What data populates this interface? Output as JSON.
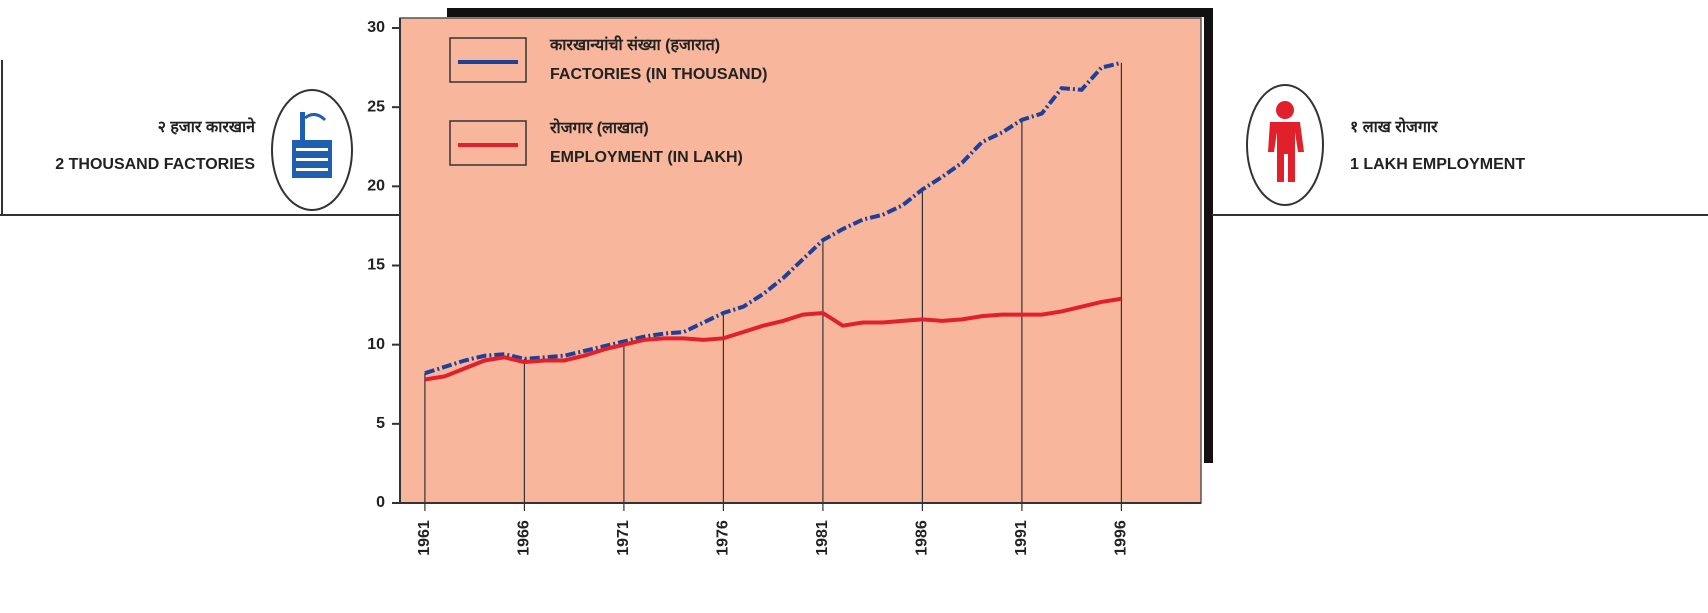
{
  "chart_data": {
    "type": "line",
    "legend_labels_marathi": [
      "कारखान्यांची संख्या (हजारात)",
      "रोजगार (लाखात)"
    ],
    "annotations": [
      {
        "text_marathi": "२ हजार कारखाने",
        "text": "2 THOUSAND FACTORIES"
      },
      {
        "text_marathi": "१ लाख रोजगार",
        "text": "1 LAKH EMPLOYMENT"
      }
    ],
    "x": [
      1961,
      1962,
      1963,
      1964,
      1965,
      1966,
      1967,
      1968,
      1969,
      1970,
      1971,
      1972,
      1973,
      1974,
      1975,
      1976,
      1977,
      1978,
      1979,
      1980,
      1981,
      1982,
      1983,
      1984,
      1985,
      1986,
      1987,
      1988,
      1989,
      1990,
      1991,
      1992,
      1993,
      1994,
      1995,
      1996
    ],
    "series": [
      {
        "name": "FACTORIES (IN THOUSAND)",
        "color": "#1f3f9a",
        "values": [
          8.2,
          8.6,
          9.0,
          9.3,
          9.4,
          9.1,
          9.2,
          9.3,
          9.6,
          9.9,
          10.2,
          10.5,
          10.7,
          10.8,
          11.4,
          12.0,
          12.4,
          13.2,
          14.2,
          15.4,
          16.6,
          17.3,
          17.9,
          18.2,
          18.8,
          19.8,
          20.6,
          21.5,
          22.8,
          23.4,
          24.2,
          24.6,
          26.2,
          26.1,
          27.5,
          27.8
        ]
      },
      {
        "name": "EMPLOYMENT (IN LAKH)",
        "color": "#e0202a",
        "values": [
          7.8,
          8.0,
          8.5,
          9.0,
          9.2,
          8.9,
          9.0,
          9.0,
          9.3,
          9.7,
          10.0,
          10.3,
          10.4,
          10.4,
          10.3,
          10.4,
          10.8,
          11.2,
          11.5,
          11.9,
          12.0,
          11.2,
          11.4,
          11.4,
          11.5,
          11.6,
          11.5,
          11.6,
          11.8,
          11.9,
          11.9,
          11.9,
          12.1,
          12.4,
          12.7,
          12.9
        ]
      }
    ],
    "xlim": [
      1960,
      2000
    ],
    "xticks": [
      1961,
      1966,
      1971,
      1976,
      1981,
      1986,
      1991,
      1996
    ],
    "ylim": [
      0,
      30
    ],
    "yticks": [
      0,
      5,
      10,
      15,
      20,
      25,
      30
    ]
  }
}
